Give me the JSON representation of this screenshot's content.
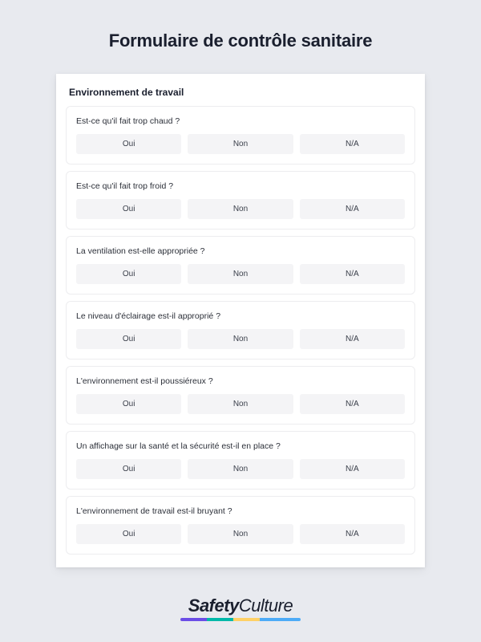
{
  "title": "Formulaire de contrôle sanitaire",
  "section_header": "Environnement de travail",
  "option_labels": {
    "yes": "Oui",
    "no": "Non",
    "na": "N/A"
  },
  "questions": [
    {
      "text": "Est-ce qu'il fait trop chaud ?"
    },
    {
      "text": "Est-ce qu'il fait trop froid ?"
    },
    {
      "text": "La ventilation est-elle appropriée ?"
    },
    {
      "text": "Le niveau d'éclairage est-il approprié ?"
    },
    {
      "text": "L'environnement est-il poussiéreux ?"
    },
    {
      "text": "Un affichage sur la santé et la sécurité est-il en place ?"
    },
    {
      "text": "L'environnement de travail est-il bruyant ?"
    }
  ],
  "logo": {
    "part1": "Safety",
    "part2": "Culture"
  },
  "colors": {
    "page_bg": "#e8eaef",
    "card_bg": "#ffffff",
    "option_bg": "#f4f4f6",
    "text_primary": "#1a1f2e"
  }
}
